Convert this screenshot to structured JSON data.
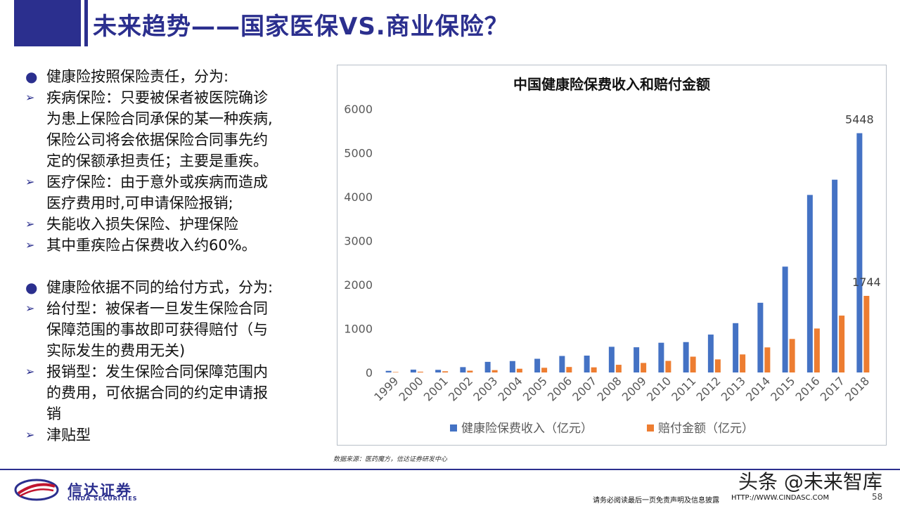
{
  "header": {
    "title": "未来趋势——国家医保VS.商业保险？"
  },
  "left_panel": {
    "section1": {
      "intro": "健康险按照保险责任，分为:",
      "items": [
        [
          "疾病保险：只要被保者被医院确诊",
          "为患上保险合同承保的某一种疾病,",
          "保险公司将会依据保险合同事先约",
          "定的保额承担责任；主要是重疾。"
        ],
        [
          "医疗保险：由于意外或疾病而造成",
          "医疗费用时,可申请保险报销;"
        ],
        [
          "失能收入损失保险、护理保险"
        ],
        [
          "其中重疾险占保费收入约60%。"
        ]
      ]
    },
    "section2": {
      "intro": "健康险依据不同的给付方式，分为:",
      "items": [
        [
          "给付型：被保者一旦发生保险合同",
          "保障范围的事故即可获得赔付（与",
          "实际发生的费用无关)"
        ],
        [
          "报销型：发生保险合同保障范围内",
          "的费用，可依据合同的约定申请报",
          "销"
        ],
        [
          "津贴型"
        ]
      ]
    }
  },
  "chart_data": {
    "type": "bar",
    "title": "中国健康险保费收入和赔付金额",
    "categories": [
      "1999",
      "2000",
      "2001",
      "2002",
      "2003",
      "2004",
      "2005",
      "2006",
      "2007",
      "2008",
      "2009",
      "2010",
      "2011",
      "2012",
      "2013",
      "2014",
      "2015",
      "2016",
      "2017",
      "2018"
    ],
    "series": [
      {
        "name": "健康险保费收入（亿元）",
        "color": "#4472c4",
        "values": [
          37,
          65,
          60,
          122,
          242,
          260,
          312,
          376,
          384,
          585,
          574,
          677,
          692,
          863,
          1123,
          1587,
          2410,
          4042,
          4389,
          5448
        ]
      },
      {
        "name": "赔付金额（亿元）",
        "color": "#ed7d31",
        "values": [
          10,
          18,
          27,
          41,
          54,
          85,
          107,
          125,
          117,
          175,
          217,
          264,
          360,
          298,
          411,
          571,
          763,
          1001,
          1295,
          1744
        ]
      }
    ],
    "data_labels": [
      {
        "series": 0,
        "category": "2018",
        "text": "5448"
      },
      {
        "series": 1,
        "category": "2018",
        "text": "1744"
      }
    ],
    "ylim": [
      0,
      6000
    ],
    "yticks": [
      "0",
      "1000",
      "2000",
      "3000",
      "4000",
      "5000",
      "6000"
    ],
    "grid": false,
    "legend": "bottom",
    "xlabel": "",
    "ylabel": ""
  },
  "source_note": "数据来源：医药魔方，信达证券研发中心",
  "footer": {
    "logo_cn": "信达证券",
    "logo_en": "CINDA SECURITIES",
    "watermark": "头条 @未来智库",
    "disclaimer": "请务必阅读最后一页免责声明及信息披露",
    "url": "HTTP://WWW.CINDASC.COM",
    "page_number": "58"
  },
  "colors": {
    "brand": "#2b2f8e",
    "series1": "#4472c4",
    "series2": "#ed7d31"
  }
}
